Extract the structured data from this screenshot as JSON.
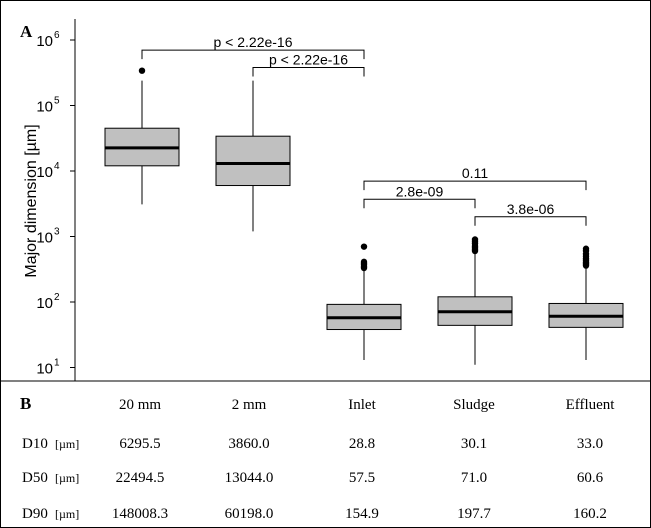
{
  "panel_a_label": "A",
  "panel_b_label": "B",
  "chart_data": {
    "type": "box",
    "ylabel": "Major dimension [µm]",
    "yscale": "log",
    "ylim": [
      8,
      1500000
    ],
    "yticks": [
      {
        "value": 10,
        "label": "10",
        "exp": "1"
      },
      {
        "value": 100,
        "label": "10",
        "exp": "2"
      },
      {
        "value": 1000,
        "label": "10",
        "exp": "3"
      },
      {
        "value": 10000,
        "label": "10",
        "exp": "4"
      },
      {
        "value": 100000,
        "label": "10",
        "exp": "5"
      },
      {
        "value": 1000000,
        "label": "10",
        "exp": "6"
      }
    ],
    "categories": [
      "20 mm",
      "2 mm",
      "Inlet",
      "Sludge",
      "Effluent"
    ],
    "box_color": "#c0c0c0",
    "boxes": [
      {
        "category": "20 mm",
        "whisker_low": 3100,
        "q1": 12000,
        "median": 22500,
        "q3": 45000,
        "whisker_high": 240000,
        "outliers": [
          340000
        ]
      },
      {
        "category": "2 mm",
        "whisker_low": 1200,
        "q1": 6000,
        "median": 13000,
        "q3": 34000,
        "whisker_high": 240000,
        "outliers": []
      },
      {
        "category": "Inlet",
        "whisker_low": 13,
        "q1": 38,
        "median": 57.5,
        "q3": 92,
        "whisker_high": 300,
        "outliers": [
          330,
          350,
          370,
          390,
          410,
          700
        ]
      },
      {
        "category": "Sludge",
        "whisker_low": 11,
        "q1": 44,
        "median": 71,
        "q3": 120,
        "whisker_high": 560,
        "outliers": [
          600,
          640,
          680,
          720,
          780,
          840,
          900
        ]
      },
      {
        "category": "Effluent",
        "whisker_low": 13,
        "q1": 41,
        "median": 60.6,
        "q3": 95,
        "whisker_high": 340,
        "outliers": [
          360,
          380,
          400,
          430,
          460,
          500,
          540,
          600,
          650
        ]
      }
    ],
    "comparisons": [
      {
        "from": 0,
        "to": 2,
        "label": "p < 2.22e-16",
        "y": 700000
      },
      {
        "from": 1,
        "to": 2,
        "label": "p < 2.22e-16",
        "y": 380000
      },
      {
        "from": 2,
        "to": 4,
        "label": "0.11",
        "y": 7000
      },
      {
        "from": 2,
        "to": 3,
        "label": "2.8e-09",
        "y": 3700
      },
      {
        "from": 3,
        "to": 4,
        "label": "3.8e-06",
        "y": 2000
      }
    ]
  },
  "table": {
    "headers": [
      "20 mm",
      "2 mm",
      "Inlet",
      "Sludge",
      "Effluent"
    ],
    "rows": [
      {
        "label": "D10",
        "unit": "[µm]",
        "values": [
          "6295.5",
          "3860.0",
          "28.8",
          "30.1",
          "33.0"
        ]
      },
      {
        "label": "D50",
        "unit": "[µm]",
        "values": [
          "22494.5",
          "13044.0",
          "57.5",
          "71.0",
          "60.6"
        ]
      },
      {
        "label": "D90",
        "unit": "[µm]",
        "values": [
          "148008.3",
          "60198.0",
          "154.9",
          "197.7",
          "160.2"
        ]
      }
    ]
  }
}
